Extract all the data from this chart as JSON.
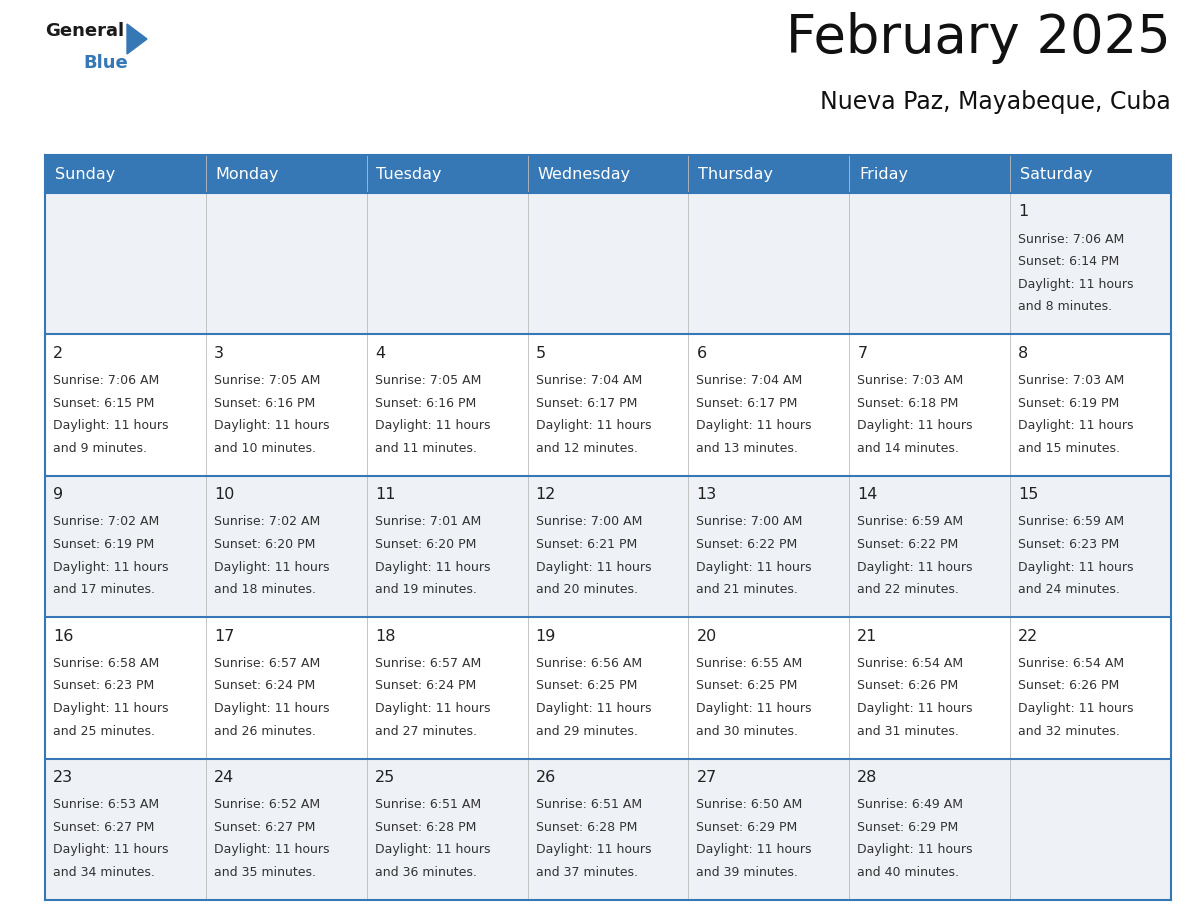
{
  "title": "February 2025",
  "subtitle": "Nueva Paz, Mayabeque, Cuba",
  "header_color": "#3578b5",
  "header_text_color": "#ffffff",
  "cell_bg_even": "#eef2f7",
  "cell_bg_odd": "#ffffff",
  "border_color": "#3578b5",
  "text_color": "#333333",
  "day_number_color": "#222222",
  "day_names": [
    "Sunday",
    "Monday",
    "Tuesday",
    "Wednesday",
    "Thursday",
    "Friday",
    "Saturday"
  ],
  "days": [
    {
      "day": 1,
      "col": 6,
      "row": 0,
      "sunrise": "7:06 AM",
      "sunset": "6:14 PM",
      "daylight": "11 hours and 8 minutes."
    },
    {
      "day": 2,
      "col": 0,
      "row": 1,
      "sunrise": "7:06 AM",
      "sunset": "6:15 PM",
      "daylight": "11 hours and 9 minutes."
    },
    {
      "day": 3,
      "col": 1,
      "row": 1,
      "sunrise": "7:05 AM",
      "sunset": "6:16 PM",
      "daylight": "11 hours and 10 minutes."
    },
    {
      "day": 4,
      "col": 2,
      "row": 1,
      "sunrise": "7:05 AM",
      "sunset": "6:16 PM",
      "daylight": "11 hours and 11 minutes."
    },
    {
      "day": 5,
      "col": 3,
      "row": 1,
      "sunrise": "7:04 AM",
      "sunset": "6:17 PM",
      "daylight": "11 hours and 12 minutes."
    },
    {
      "day": 6,
      "col": 4,
      "row": 1,
      "sunrise": "7:04 AM",
      "sunset": "6:17 PM",
      "daylight": "11 hours and 13 minutes."
    },
    {
      "day": 7,
      "col": 5,
      "row": 1,
      "sunrise": "7:03 AM",
      "sunset": "6:18 PM",
      "daylight": "11 hours and 14 minutes."
    },
    {
      "day": 8,
      "col": 6,
      "row": 1,
      "sunrise": "7:03 AM",
      "sunset": "6:19 PM",
      "daylight": "11 hours and 15 minutes."
    },
    {
      "day": 9,
      "col": 0,
      "row": 2,
      "sunrise": "7:02 AM",
      "sunset": "6:19 PM",
      "daylight": "11 hours and 17 minutes."
    },
    {
      "day": 10,
      "col": 1,
      "row": 2,
      "sunrise": "7:02 AM",
      "sunset": "6:20 PM",
      "daylight": "11 hours and 18 minutes."
    },
    {
      "day": 11,
      "col": 2,
      "row": 2,
      "sunrise": "7:01 AM",
      "sunset": "6:20 PM",
      "daylight": "11 hours and 19 minutes."
    },
    {
      "day": 12,
      "col": 3,
      "row": 2,
      "sunrise": "7:00 AM",
      "sunset": "6:21 PM",
      "daylight": "11 hours and 20 minutes."
    },
    {
      "day": 13,
      "col": 4,
      "row": 2,
      "sunrise": "7:00 AM",
      "sunset": "6:22 PM",
      "daylight": "11 hours and 21 minutes."
    },
    {
      "day": 14,
      "col": 5,
      "row": 2,
      "sunrise": "6:59 AM",
      "sunset": "6:22 PM",
      "daylight": "11 hours and 22 minutes."
    },
    {
      "day": 15,
      "col": 6,
      "row": 2,
      "sunrise": "6:59 AM",
      "sunset": "6:23 PM",
      "daylight": "11 hours and 24 minutes."
    },
    {
      "day": 16,
      "col": 0,
      "row": 3,
      "sunrise": "6:58 AM",
      "sunset": "6:23 PM",
      "daylight": "11 hours and 25 minutes."
    },
    {
      "day": 17,
      "col": 1,
      "row": 3,
      "sunrise": "6:57 AM",
      "sunset": "6:24 PM",
      "daylight": "11 hours and 26 minutes."
    },
    {
      "day": 18,
      "col": 2,
      "row": 3,
      "sunrise": "6:57 AM",
      "sunset": "6:24 PM",
      "daylight": "11 hours and 27 minutes."
    },
    {
      "day": 19,
      "col": 3,
      "row": 3,
      "sunrise": "6:56 AM",
      "sunset": "6:25 PM",
      "daylight": "11 hours and 29 minutes."
    },
    {
      "day": 20,
      "col": 4,
      "row": 3,
      "sunrise": "6:55 AM",
      "sunset": "6:25 PM",
      "daylight": "11 hours and 30 minutes."
    },
    {
      "day": 21,
      "col": 5,
      "row": 3,
      "sunrise": "6:54 AM",
      "sunset": "6:26 PM",
      "daylight": "11 hours and 31 minutes."
    },
    {
      "day": 22,
      "col": 6,
      "row": 3,
      "sunrise": "6:54 AM",
      "sunset": "6:26 PM",
      "daylight": "11 hours and 32 minutes."
    },
    {
      "day": 23,
      "col": 0,
      "row": 4,
      "sunrise": "6:53 AM",
      "sunset": "6:27 PM",
      "daylight": "11 hours and 34 minutes."
    },
    {
      "day": 24,
      "col": 1,
      "row": 4,
      "sunrise": "6:52 AM",
      "sunset": "6:27 PM",
      "daylight": "11 hours and 35 minutes."
    },
    {
      "day": 25,
      "col": 2,
      "row": 4,
      "sunrise": "6:51 AM",
      "sunset": "6:28 PM",
      "daylight": "11 hours and 36 minutes."
    },
    {
      "day": 26,
      "col": 3,
      "row": 4,
      "sunrise": "6:51 AM",
      "sunset": "6:28 PM",
      "daylight": "11 hours and 37 minutes."
    },
    {
      "day": 27,
      "col": 4,
      "row": 4,
      "sunrise": "6:50 AM",
      "sunset": "6:29 PM",
      "daylight": "11 hours and 39 minutes."
    },
    {
      "day": 28,
      "col": 5,
      "row": 4,
      "sunrise": "6:49 AM",
      "sunset": "6:29 PM",
      "daylight": "11 hours and 40 minutes."
    }
  ],
  "num_rows": 5,
  "num_cols": 7,
  "logo_triangle_color": "#3578b5",
  "fig_width": 11.88,
  "fig_height": 9.18,
  "dpi": 100
}
